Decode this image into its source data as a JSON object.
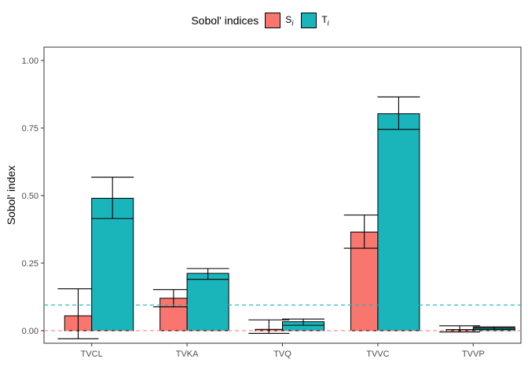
{
  "legend": {
    "title": "Sobol' indices",
    "items": [
      {
        "letter": "S",
        "sub": "i",
        "color": "#F8766D"
      },
      {
        "letter": "T",
        "sub": "i",
        "color": "#19B5BB"
      }
    ]
  },
  "chart_data": {
    "type": "bar",
    "ylabel": "Sobol' index",
    "xlabel": "",
    "ylim": [
      0,
      1.0
    ],
    "yticks": [
      "0.00",
      "0.25",
      "0.50",
      "0.75",
      "1.00"
    ],
    "categories": [
      "TVCL",
      "TVKA",
      "TVQ",
      "TVVC",
      "TVVP"
    ],
    "series": [
      {
        "name": "S_i",
        "color": "#F8766D",
        "values": [
          0.055,
          0.12,
          0.005,
          0.365,
          0.004
        ],
        "err_low": [
          -0.03,
          0.088,
          -0.01,
          0.305,
          -0.005
        ],
        "err_high": [
          0.155,
          0.152,
          0.04,
          0.428,
          0.018
        ]
      },
      {
        "name": "T_i",
        "color": "#19B5BB",
        "values": [
          0.49,
          0.212,
          0.033,
          0.803,
          0.01
        ],
        "err_low": [
          0.415,
          0.19,
          0.02,
          0.745,
          0.005
        ],
        "err_high": [
          0.568,
          0.23,
          0.043,
          0.865,
          0.014
        ]
      }
    ],
    "reference_lines": [
      {
        "value": 0.095,
        "color": "#19B5BB",
        "style": "dashed"
      },
      {
        "value": 0.0,
        "color": "#F8766D",
        "style": "dashed"
      }
    ],
    "grid": false
  }
}
